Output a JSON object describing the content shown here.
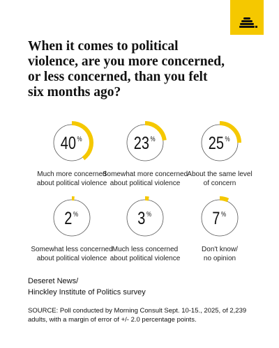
{
  "chart_data": {
    "type": "gauge",
    "title": "When it comes to political\nviolence, are you more concerned,\nor less concerned, than you felt\nsix months ago?",
    "categories": [
      "Much more concerned\nabout political violence",
      "Somewhat more concerned\nabout political violence",
      "About the same level\nof concern",
      "Somewhat less concerned\nabout political violence",
      "Much less concerned\nabout political violence",
      "Don't know/\nno opinion"
    ],
    "values": [
      40,
      23,
      25,
      2,
      3,
      7
    ],
    "unit": "%",
    "color": "#f5c800",
    "source_name": "Deseret News/\nHinckley Institute of Politics survey",
    "source": "SOURCE: Poll conducted by Morning Consult Sept. 10-15., 2025, of 2,239 adults, with a margin of error of +/- 2.0 percentage points."
  }
}
